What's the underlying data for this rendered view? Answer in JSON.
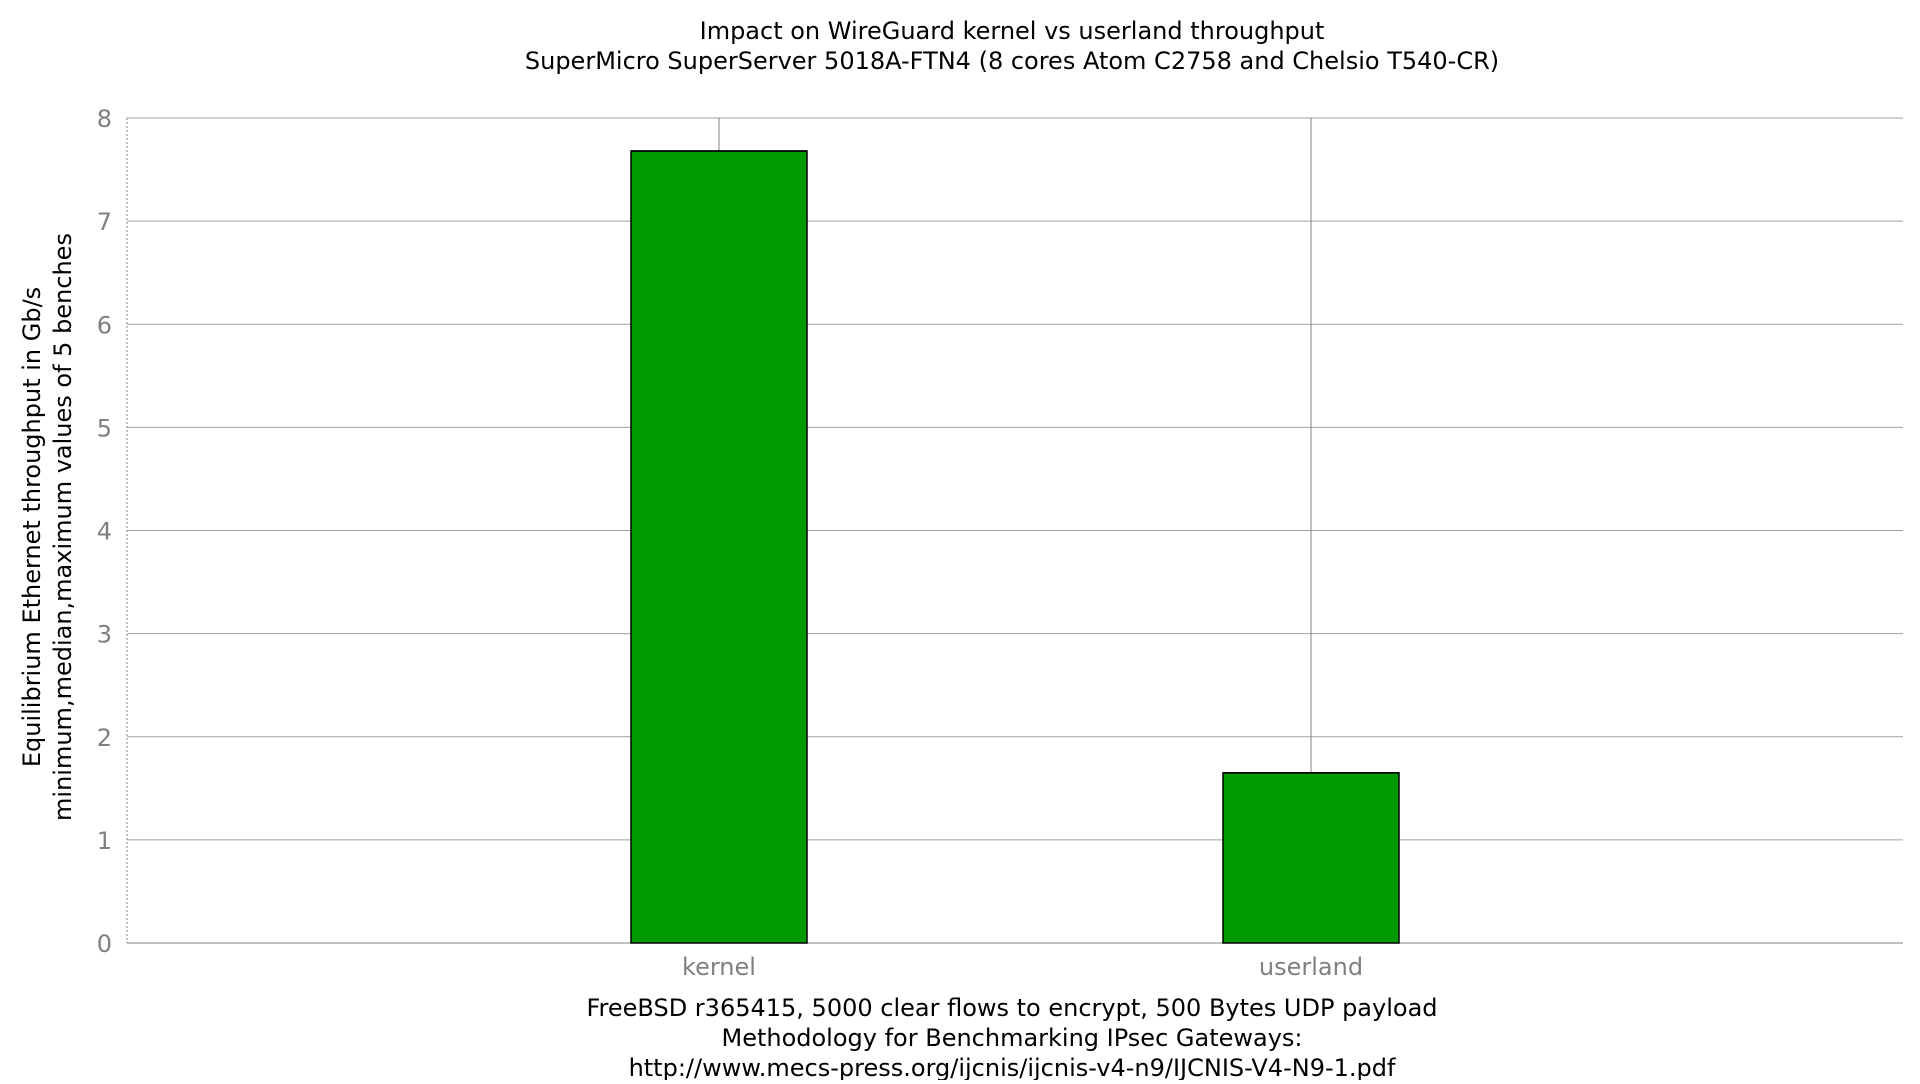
{
  "chart_data": {
    "type": "bar",
    "title": "Impact on WireGuard kernel vs userland throughput",
    "subtitle": "SuperMicro SuperServer 5018A-FTN4 (8 cores Atom C2758 and Chelsio T540-CR)",
    "ylabel": "Equilibrium Ethernet throughput in Gb/s",
    "ylabel2": "minimum,median,maximum values of 5 benches",
    "xlabel": "FreeBSD r365415, 5000 clear flows to encrypt, 500 Bytes UDP payload",
    "xlabel2": "Methodology for Benchmarking IPsec Gateways:",
    "xlabel3": "http://www.mecs-press.org/ijcnis/ijcnis-v4-n9/IJCNIS-V4-N9-1.pdf",
    "categories": [
      "kernel",
      "userland"
    ],
    "values": [
      7.68,
      1.65
    ],
    "error_min": [
      7.68,
      1.65
    ],
    "error_max": [
      8.0,
      8.0
    ],
    "ylim": [
      0,
      8
    ],
    "yticks": [
      "0",
      "1",
      "2",
      "3",
      "4",
      "5",
      "6",
      "7",
      "8"
    ],
    "grid": true,
    "colors": {
      "bar": "#009900",
      "bar_edge": "#000000",
      "grid": "#a0a0a0",
      "axis": "#808080",
      "tick_label": "#808080",
      "text": "#000000"
    }
  }
}
